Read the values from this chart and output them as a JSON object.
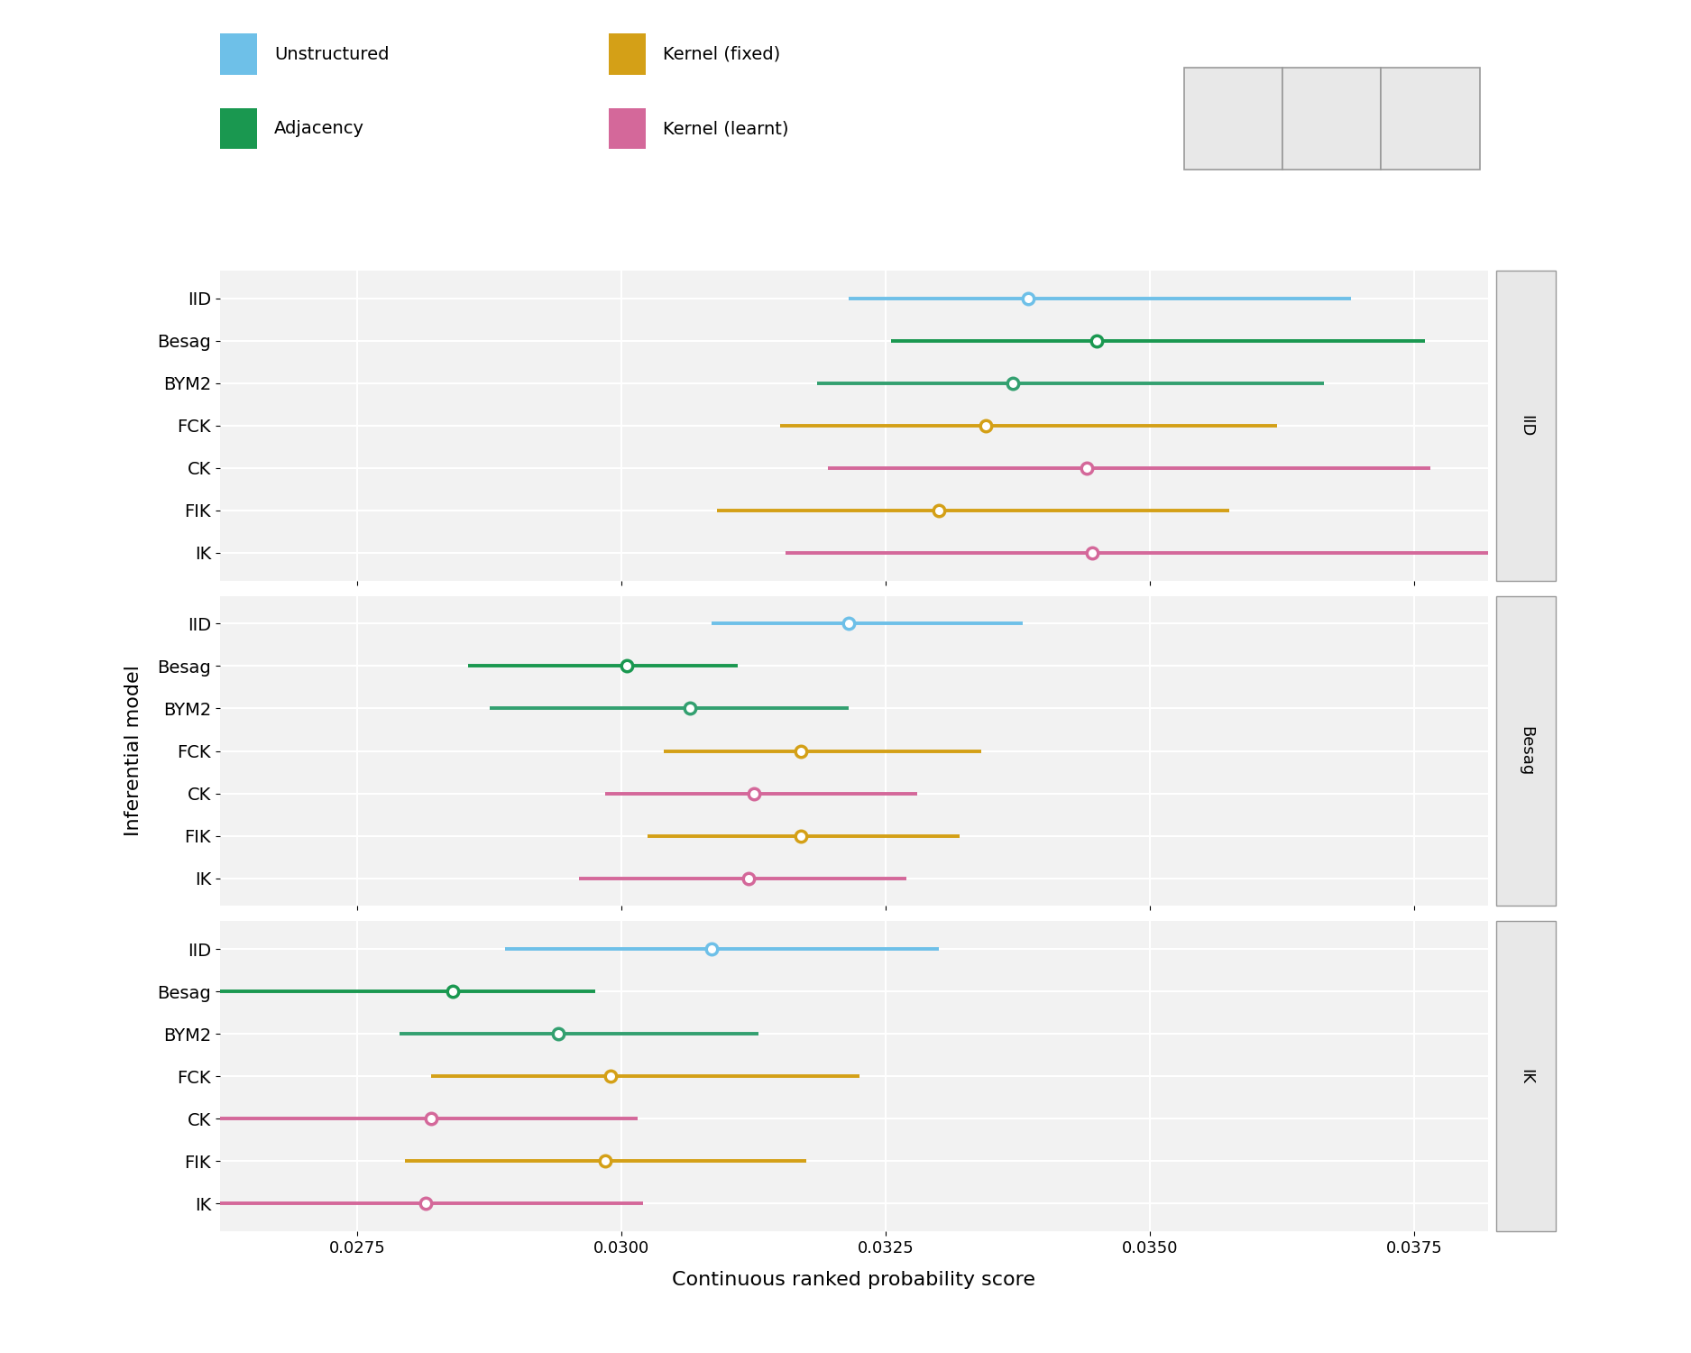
{
  "sim_models": [
    "IID",
    "Besag",
    "IK"
  ],
  "infer_models": [
    "IID",
    "Besag",
    "BYM2",
    "FCK",
    "CK",
    "FIK",
    "IK"
  ],
  "colors": {
    "IID": "#6EC0E8",
    "Besag": "#1A9850",
    "BYM2": "#33A070",
    "FCK": "#D4A017",
    "CK": "#D4689A",
    "FIK": "#D4A017",
    "IK": "#D4689A"
  },
  "data": {
    "IID": {
      "IID": {
        "mean": 0.03385,
        "lo": 0.03215,
        "hi": 0.0369
      },
      "Besag": {
        "mean": 0.0345,
        "lo": 0.03255,
        "hi": 0.0376
      },
      "BYM2": {
        "mean": 0.0337,
        "lo": 0.03185,
        "hi": 0.03665
      },
      "FCK": {
        "mean": 0.03345,
        "lo": 0.0315,
        "hi": 0.0362
      },
      "CK": {
        "mean": 0.0344,
        "lo": 0.03195,
        "hi": 0.03765
      },
      "FIK": {
        "mean": 0.033,
        "lo": 0.0309,
        "hi": 0.03575
      },
      "IK": {
        "mean": 0.03445,
        "lo": 0.03155,
        "hi": 0.0383
      }
    },
    "Besag": {
      "IID": {
        "mean": 0.03215,
        "lo": 0.03085,
        "hi": 0.0338
      },
      "Besag": {
        "mean": 0.03005,
        "lo": 0.02855,
        "hi": 0.0311
      },
      "BYM2": {
        "mean": 0.03065,
        "lo": 0.02875,
        "hi": 0.03215
      },
      "FCK": {
        "mean": 0.0317,
        "lo": 0.0304,
        "hi": 0.0334
      },
      "CK": {
        "mean": 0.03125,
        "lo": 0.02985,
        "hi": 0.0328
      },
      "FIK": {
        "mean": 0.0317,
        "lo": 0.03025,
        "hi": 0.0332
      },
      "IK": {
        "mean": 0.0312,
        "lo": 0.0296,
        "hi": 0.0327
      }
    },
    "IK": {
      "IID": {
        "mean": 0.03085,
        "lo": 0.0289,
        "hi": 0.033
      },
      "Besag": {
        "mean": 0.0284,
        "lo": 0.0262,
        "hi": 0.02975
      },
      "BYM2": {
        "mean": 0.0294,
        "lo": 0.0279,
        "hi": 0.0313
      },
      "FCK": {
        "mean": 0.0299,
        "lo": 0.0282,
        "hi": 0.03225
      },
      "CK": {
        "mean": 0.0282,
        "lo": 0.0262,
        "hi": 0.03015
      },
      "FIK": {
        "mean": 0.02985,
        "lo": 0.02795,
        "hi": 0.03175
      },
      "IK": {
        "mean": 0.02815,
        "lo": 0.026,
        "hi": 0.0302
      }
    }
  },
  "xlim": [
    0.0262,
    0.0382
  ],
  "xticks": [
    0.0275,
    0.03,
    0.0325,
    0.035,
    0.0375
  ],
  "xlabel": "Continuous ranked probability score",
  "ylabel": "Inferential model",
  "background_color": "#FFFFFF",
  "panel_bg": "#F2F2F2",
  "grid_color": "#FFFFFF",
  "legend_items_row1": [
    {
      "label": "Unstructured",
      "color": "#6EC0E8"
    },
    {
      "label": "Kernel (fixed)",
      "color": "#D4A017"
    }
  ],
  "legend_items_row2": [
    {
      "label": "Adjacency",
      "color": "#1A9850"
    },
    {
      "label": "Kernel (learnt)",
      "color": "#D4689A"
    }
  ],
  "strip_labels": [
    "IID",
    "Besag",
    "IK"
  ],
  "strip_bg": "#E8E8E8",
  "strip_border": "#999999"
}
